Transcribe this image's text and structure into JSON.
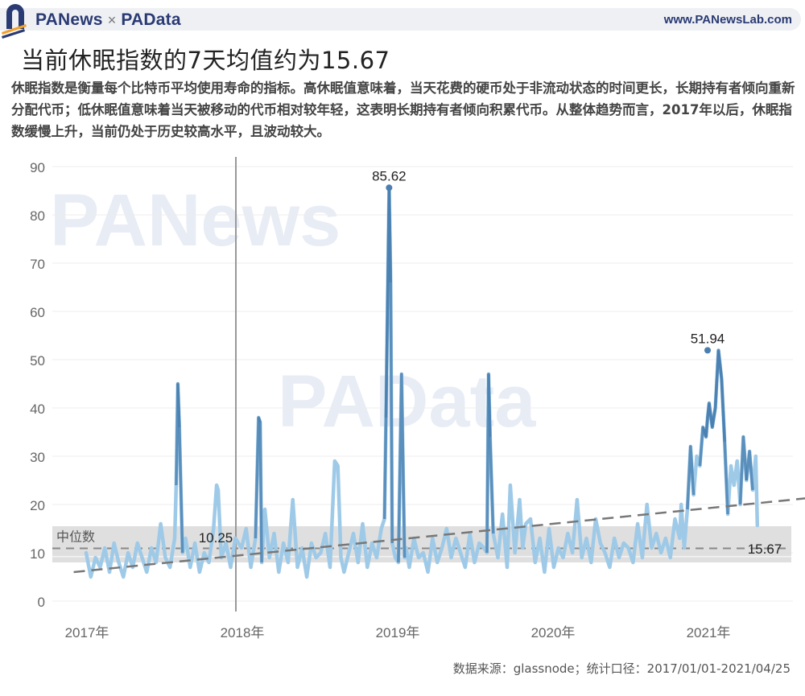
{
  "header": {
    "brand_left": "PANews",
    "brand_separator": "×",
    "brand_right": "PAData",
    "url": "www.PANewsLab.com"
  },
  "title": "当前休眠指数的7天均值约为15.67",
  "description": "休眠指数是衡量每个比特币平均使用寿命的指标。高休眠值意味着，当天花费的硬币处于非流动状态的时间更长，长期持有者倾向重新分配代币；低休眠值意味着当天被移动的代币相对较年轻，这表明长期持有者倾向积累代币。从整体趋势而言，2017年以后，休眠指数缓慢上升，当前仍处于历史较高水平，且波动较大。",
  "source": "数据来源：glassnode；统计口径：2017/01/01-2021/04/25",
  "watermarks": [
    "PANews",
    "PAData"
  ],
  "colors": {
    "line_light": "#9ecae8",
    "line_dark": "#4a7fb0",
    "median_band": "#d9d9d9",
    "trend": "#777777",
    "grid": "#ececec",
    "axis_text": "#666666"
  },
  "chart_data": {
    "type": "line",
    "title": "当前休眠指数的7天均值约为15.67",
    "xlabel": "",
    "ylabel": "",
    "x_range": [
      "2017-01-01",
      "2021-04-25"
    ],
    "ylim": [
      0,
      90
    ],
    "yticks": [
      0,
      10,
      20,
      30,
      40,
      50,
      60,
      70,
      80,
      90
    ],
    "xticks": [
      "2017年",
      "2018年",
      "2019年",
      "2020年",
      "2021年"
    ],
    "grid": true,
    "legend": null,
    "reference_lines": {
      "vertical_marker_date": "2018-01-01",
      "median_label": "中位数",
      "median_value": 10.25,
      "median_band": [
        8,
        15.5
      ],
      "trend_line": {
        "start": [
          2016.92,
          6
        ],
        "end": [
          2021.7,
          21.5
        ]
      }
    },
    "annotations": [
      {
        "label": "85.62",
        "x": 2018.95,
        "y": 85.62
      },
      {
        "label": "51.94",
        "x": 2021.0,
        "y": 51.94
      },
      {
        "label": "15.67",
        "x": 2021.32,
        "y": 15.67
      },
      {
        "label": "10.25",
        "x": 2017.85,
        "y": 10.25
      }
    ],
    "series": [
      {
        "name": "休眠指数7天均值",
        "x": [
          2017.0,
          2017.03,
          2017.06,
          2017.09,
          2017.12,
          2017.15,
          2017.18,
          2017.21,
          2017.24,
          2017.27,
          2017.3,
          2017.33,
          2017.36,
          2017.39,
          2017.42,
          2017.45,
          2017.48,
          2017.51,
          2017.54,
          2017.57,
          2017.58,
          2017.59,
          2017.6,
          2017.62,
          2017.64,
          2017.67,
          2017.7,
          2017.73,
          2017.76,
          2017.79,
          2017.82,
          2017.84,
          2017.85,
          2017.87,
          2017.9,
          2017.93,
          2017.96,
          2018.0,
          2018.03,
          2018.06,
          2018.09,
          2018.11,
          2018.12,
          2018.13,
          2018.15,
          2018.18,
          2018.21,
          2018.24,
          2018.27,
          2018.3,
          2018.33,
          2018.36,
          2018.39,
          2018.42,
          2018.45,
          2018.48,
          2018.51,
          2018.54,
          2018.57,
          2018.6,
          2018.62,
          2018.64,
          2018.66,
          2018.69,
          2018.72,
          2018.75,
          2018.78,
          2018.81,
          2018.84,
          2018.87,
          2018.9,
          2018.92,
          2018.93,
          2018.95,
          2018.96,
          2018.97,
          2018.99,
          2019.01,
          2019.03,
          2019.05,
          2019.06,
          2019.08,
          2019.11,
          2019.14,
          2019.17,
          2019.2,
          2019.23,
          2019.26,
          2019.29,
          2019.32,
          2019.35,
          2019.38,
          2019.41,
          2019.44,
          2019.47,
          2019.5,
          2019.53,
          2019.56,
          2019.58,
          2019.59,
          2019.6,
          2019.62,
          2019.65,
          2019.68,
          2019.71,
          2019.73,
          2019.76,
          2019.79,
          2019.81,
          2019.83,
          2019.86,
          2019.89,
          2019.92,
          2019.95,
          2019.98,
          2020.01,
          2020.04,
          2020.07,
          2020.1,
          2020.13,
          2020.16,
          2020.19,
          2020.22,
          2020.25,
          2020.28,
          2020.31,
          2020.34,
          2020.37,
          2020.4,
          2020.43,
          2020.46,
          2020.49,
          2020.52,
          2020.55,
          2020.58,
          2020.61,
          2020.64,
          2020.67,
          2020.7,
          2020.73,
          2020.76,
          2020.79,
          2020.82,
          2020.83,
          2020.85,
          2020.87,
          2020.89,
          2020.91,
          2020.93,
          2020.95,
          2020.97,
          2020.99,
          2021.0,
          2021.01,
          2021.03,
          2021.05,
          2021.07,
          2021.09,
          2021.11,
          2021.13,
          2021.15,
          2021.17,
          2021.19,
          2021.21,
          2021.23,
          2021.25,
          2021.27,
          2021.29,
          2021.31,
          2021.32
        ],
        "y": [
          10,
          5,
          9,
          7,
          11,
          6,
          12,
          8,
          5,
          10,
          7,
          12,
          9,
          6,
          11,
          8,
          16,
          9,
          7,
          13,
          24,
          45,
          36,
          10,
          13,
          7,
          12,
          6,
          10,
          8,
          15,
          24,
          23,
          9,
          12,
          7,
          13,
          11,
          15,
          7,
          13,
          38,
          37,
          8,
          19,
          9,
          14,
          6,
          12,
          8,
          21,
          7,
          11,
          5,
          12,
          9,
          10,
          14,
          7,
          29,
          28,
          9,
          6,
          10,
          14,
          8,
          16,
          7,
          12,
          9,
          15,
          17,
          38,
          85.62,
          66,
          12,
          9,
          8,
          47,
          9,
          11,
          7,
          13,
          9,
          10,
          6,
          13,
          8,
          11,
          15,
          9,
          13,
          10,
          7,
          14,
          8,
          12,
          11,
          10,
          47,
          34,
          14,
          9,
          18,
          7,
          24,
          10,
          21,
          11,
          16,
          17,
          8,
          13,
          6,
          15,
          7,
          11,
          9,
          14,
          10,
          21,
          9,
          13,
          8,
          17,
          12,
          10,
          7,
          13,
          9,
          12,
          11,
          8,
          16,
          9,
          20,
          11,
          14,
          10,
          13,
          9,
          17,
          13,
          20,
          11,
          19,
          32,
          22,
          30,
          28,
          36,
          34,
          38,
          41,
          36,
          40,
          51.94,
          46,
          33,
          18,
          28,
          24,
          29,
          20,
          34,
          25,
          31,
          23,
          30,
          15.67
        ]
      }
    ]
  }
}
